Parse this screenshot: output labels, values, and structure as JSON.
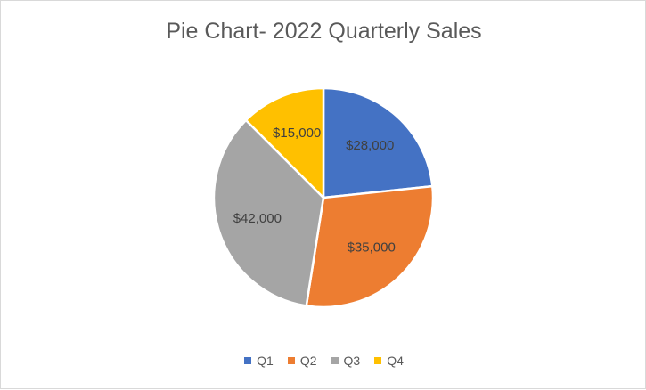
{
  "chart_data": {
    "type": "pie",
    "title": "Pie Chart- 2022 Quarterly Sales",
    "categories": [
      "Q1",
      "Q2",
      "Q3",
      "Q4"
    ],
    "values": [
      28000,
      35000,
      42000,
      15000
    ],
    "data_labels": [
      "$28,000",
      "$35,000",
      "$42,000",
      "$15,000"
    ],
    "colors": [
      "#4472c4",
      "#ed7d31",
      "#a5a5a5",
      "#ffc000"
    ],
    "legend_position": "bottom",
    "start_angle": "12 o'clock, clockwise"
  }
}
